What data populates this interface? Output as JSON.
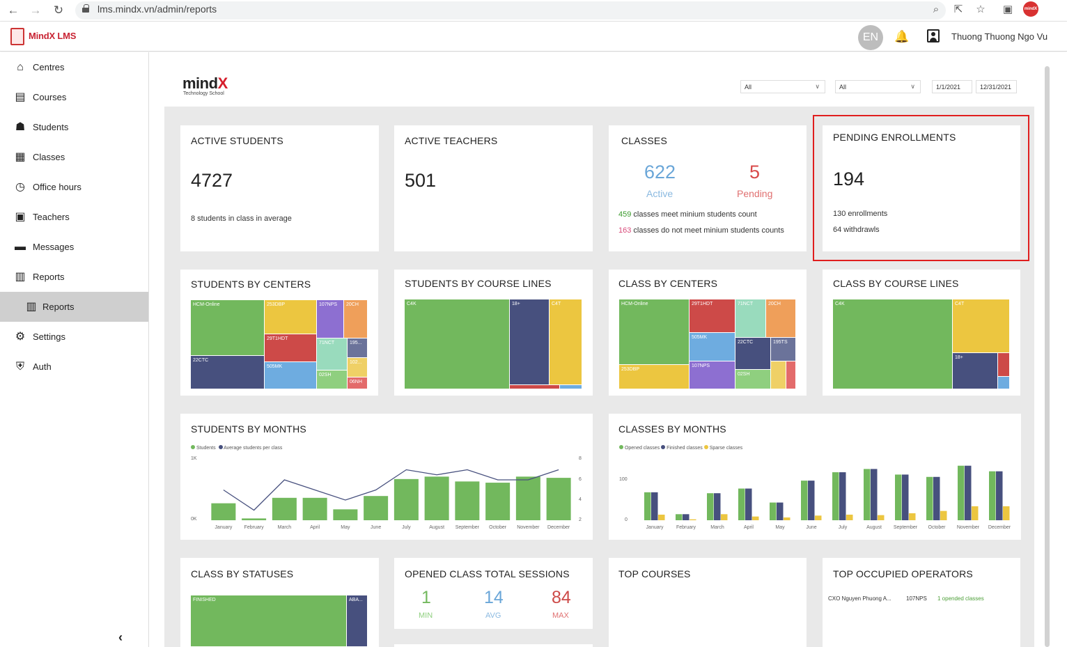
{
  "browser": {
    "url": "lms.mindx.vn/admin/reports",
    "profile_badge": "mindX"
  },
  "app": {
    "name": "MindX LMS",
    "lang": "EN",
    "user": "Thuong Thuong Ngo Vu"
  },
  "sidebar": {
    "items": [
      {
        "label": "Centres",
        "icon": "centres-icon"
      },
      {
        "label": "Courses",
        "icon": "courses-icon"
      },
      {
        "label": "Students",
        "icon": "students-icon"
      },
      {
        "label": "Classes",
        "icon": "classes-icon"
      },
      {
        "label": "Office hours",
        "icon": "clock-icon"
      },
      {
        "label": "Teachers",
        "icon": "teachers-icon"
      },
      {
        "label": "Messages",
        "icon": "messages-icon"
      },
      {
        "label": "Reports",
        "icon": "reports-icon"
      },
      {
        "label": "Reports",
        "icon": "reports-icon"
      },
      {
        "label": "Settings",
        "icon": "gear-icon"
      },
      {
        "label": "Auth",
        "icon": "shield-icon"
      }
    ]
  },
  "report": {
    "logo": {
      "brand": "mind",
      "brand_x": "X",
      "sub": "Technology School"
    },
    "filters": {
      "centre": "All",
      "course_line": "All",
      "date_from": "1/1/2021",
      "date_to": "12/31/2021"
    },
    "active_students": {
      "title": "ACTIVE STUDENTS",
      "value": "4727",
      "note": "8 students in class in average"
    },
    "active_teachers": {
      "title": "ACTIVE TEACHERS",
      "value": "501"
    },
    "classes": {
      "title": "CLASSES",
      "active_value": "622",
      "active_label": "Active",
      "pending_value": "5",
      "pending_label": "Pending",
      "meet_count": "459",
      "meet_text": "classes meet minium students count",
      "notmeet_count": "163",
      "notmeet_text": "classes do not meet minium students counts"
    },
    "pending": {
      "title": "PENDING ENROLLMENTS",
      "value": "194",
      "enrollments": "130 enrollments",
      "withdrawls": "64 withdrawls"
    },
    "students_by_centers": {
      "title": "STUDENTS BY CENTERS",
      "tiles": [
        "HCM-Online",
        "22CTC",
        "253DBP",
        "29T1HDT",
        "505MK",
        "107NPS",
        "71NCT",
        "02SH",
        "20CH",
        "195...",
        "102...",
        "06NH"
      ]
    },
    "students_by_course_lines": {
      "title": "STUDENTS BY COURSE LINES",
      "tiles": [
        "C4K",
        "18+",
        "C4T"
      ]
    },
    "class_by_centers": {
      "title": "CLASS BY CENTERS",
      "tiles": [
        "HCM-Online",
        "253DBP",
        "29T1HDT",
        "505MK",
        "107NPS",
        "71NCT",
        "20CH",
        "22CTC",
        "195TS",
        "02SH"
      ]
    },
    "class_by_course_lines": {
      "title": "CLASS BY COURSE LINES",
      "tiles": [
        "C4K",
        "C4T",
        "18+"
      ]
    },
    "students_by_months": {
      "title": "STUDENTS BY MONTHS",
      "legend1": "Students",
      "legend2": "Average students per class",
      "y1": "1K",
      "y0": "0K",
      "r8": "8",
      "r6": "6",
      "r4": "4",
      "r2": "2"
    },
    "classes_by_months": {
      "title": "CLASSES BY MONTHS",
      "legend1": "Opened classes",
      "legend2": "Finished classes",
      "legend3": "Sparse classes",
      "y100": "100",
      "y0": "0"
    },
    "class_by_statuses": {
      "title": "CLASS BY STATUSES",
      "tile1": "FINISHED",
      "tile2": "ABA..."
    },
    "opened_sessions": {
      "title": "OPENED CLASS TOTAL SESSIONS",
      "min": "1",
      "min_label": "MIN",
      "avg": "14",
      "avg_label": "AVG",
      "max": "84",
      "max_label": "MAX"
    },
    "top_courses": {
      "title": "TOP COURSES"
    },
    "top_operators": {
      "title": "TOP OCCUPIED OPERATORS",
      "name": "CXO Nguyen Phuong A...",
      "centre": "107NPS",
      "classes": "1 opended classes"
    }
  },
  "chart_data": [
    {
      "type": "bar",
      "title": "STUDENTS BY MONTHS",
      "categories": [
        "January",
        "February",
        "March",
        "April",
        "May",
        "June",
        "July",
        "August",
        "September",
        "October",
        "November",
        "December"
      ],
      "series": [
        {
          "name": "Students",
          "values": [
            280,
            30,
            370,
            370,
            180,
            400,
            680,
            720,
            640,
            620,
            720,
            700
          ]
        },
        {
          "name": "Average students per class",
          "type": "line",
          "values": [
            5,
            3,
            6,
            5,
            4,
            5,
            7,
            6.5,
            7,
            6,
            6,
            7
          ]
        }
      ],
      "ylim": [
        0,
        1000
      ],
      "y2lim": [
        2,
        8
      ]
    },
    {
      "type": "bar",
      "title": "CLASSES BY MONTHS",
      "categories": [
        "January",
        "February",
        "March",
        "April",
        "May",
        "June",
        "July",
        "August",
        "September",
        "October",
        "November",
        "December"
      ],
      "series": [
        {
          "name": "Opened classes",
          "values": [
            60,
            13,
            58,
            68,
            38,
            85,
            103,
            110,
            98,
            93,
            117,
            105
          ]
        },
        {
          "name": "Finished classes",
          "values": [
            60,
            13,
            58,
            68,
            38,
            85,
            103,
            110,
            98,
            93,
            117,
            105
          ]
        },
        {
          "name": "Sparse classes",
          "values": [
            12,
            2,
            13,
            8,
            6,
            10,
            12,
            11,
            15,
            20,
            30,
            30
          ]
        }
      ],
      "ylim": [
        0,
        130
      ]
    }
  ],
  "colors": {
    "green": "#72b85d",
    "navy": "#47507e",
    "yellow": "#ecc640",
    "red": "#cd4a48",
    "blue": "#6eace0",
    "purple": "#8d6fd1",
    "teal": "#99dbbd",
    "orange": "#ef9f5a",
    "active_blue": "#6aa6d8",
    "pending_red": "#d84a4a"
  }
}
